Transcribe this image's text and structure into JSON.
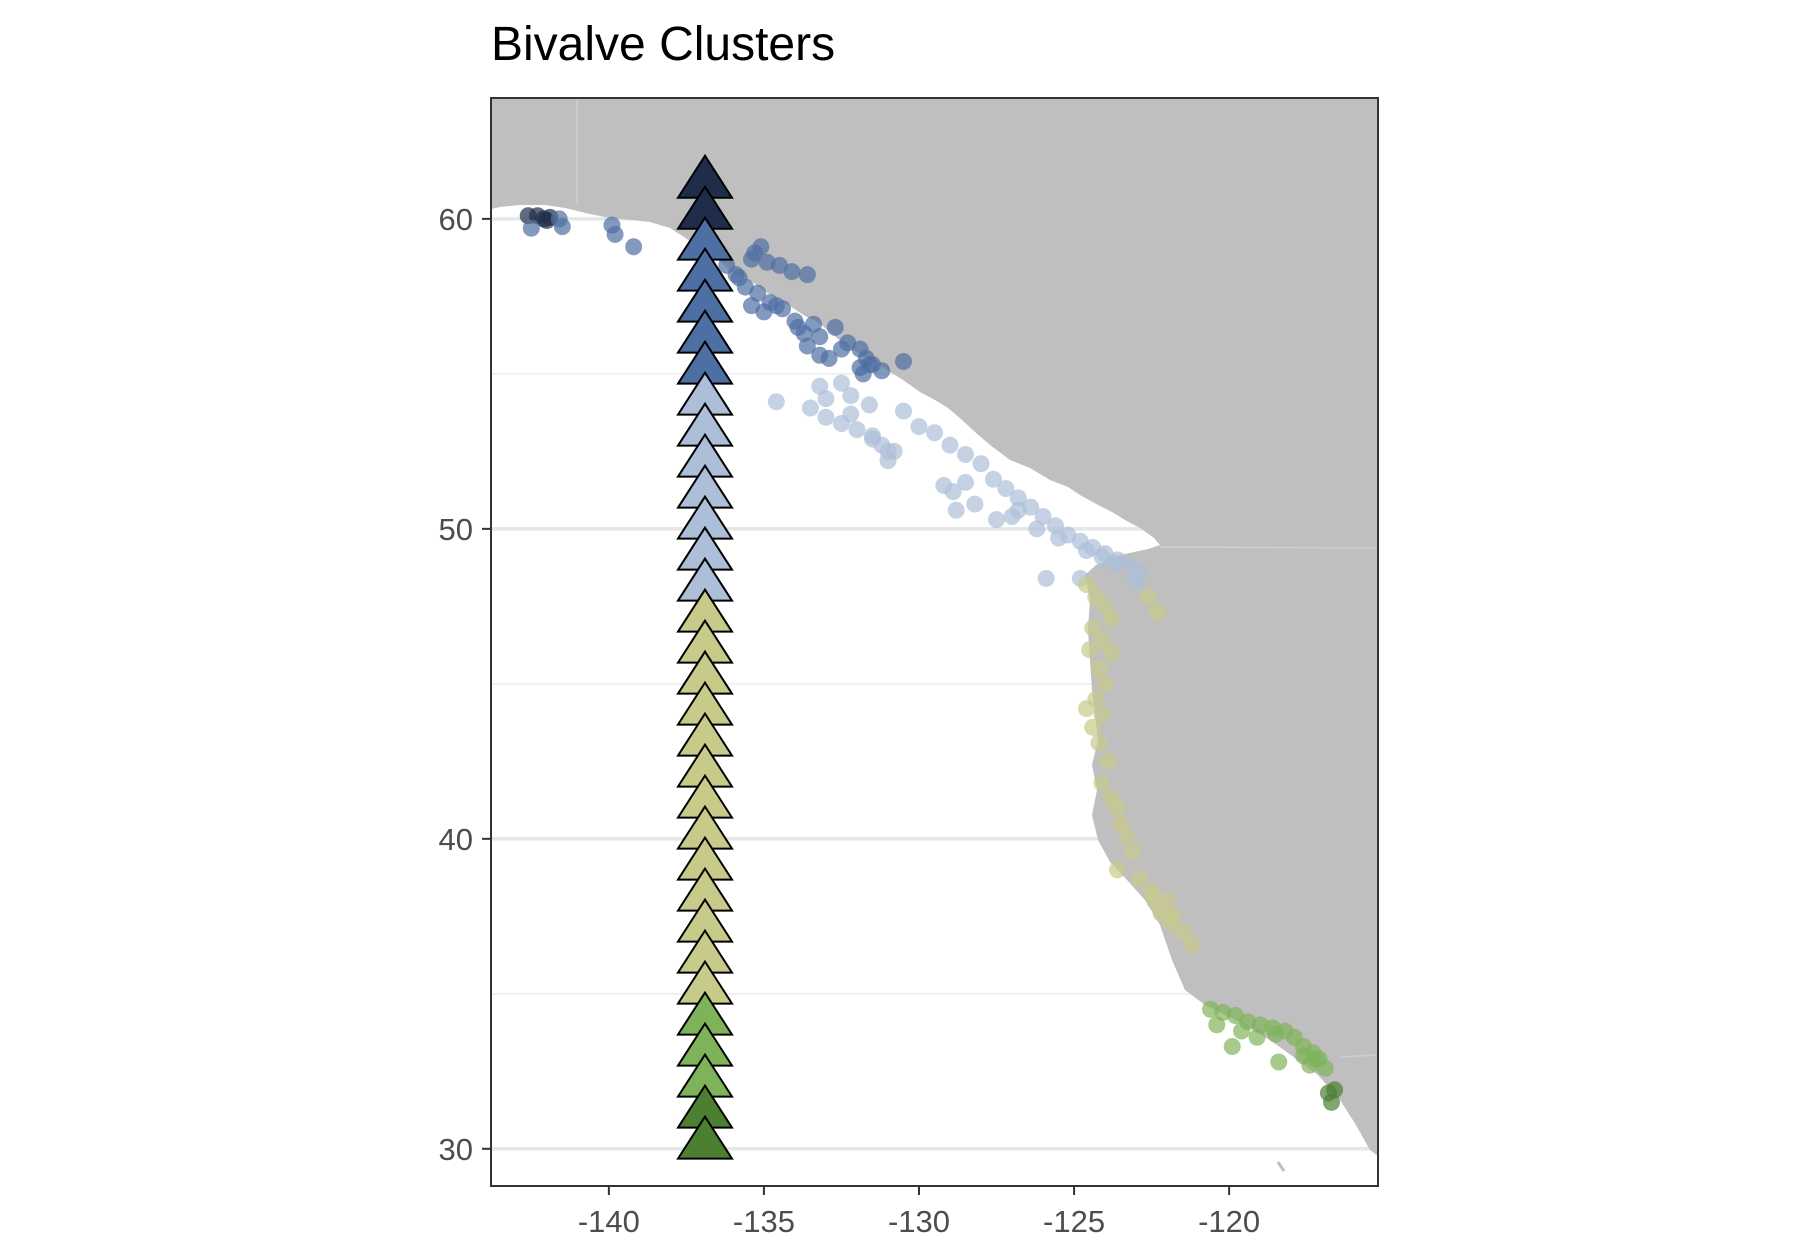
{
  "chart_data": {
    "type": "scatter",
    "title": "Bivalve Clusters",
    "xlabel": "",
    "ylabel": "",
    "xlim": [
      -143.8,
      -115.2
    ],
    "ylim": [
      28.8,
      63.9
    ],
    "x_ticks": [
      -140,
      -135,
      -130,
      -125,
      -120
    ],
    "y_ticks": [
      30,
      40,
      50,
      60
    ],
    "x_tick_labels": [
      "-140",
      "-135",
      "-130",
      "-125",
      "-120"
    ],
    "y_tick_labels": [
      "30",
      "40",
      "50",
      "60"
    ],
    "grid": true,
    "legend": "none",
    "colors": {
      "land": "#bfbfbf",
      "panel_border": "#333333",
      "grid_major": "#e6e6e6",
      "grid_minor": "#f0f0f0",
      "cluster_1": "#1f2d4a",
      "cluster_2": "#4e6fa3",
      "cluster_3": "#adbfd8",
      "cluster_4": "#c8ca8a",
      "cluster_5": "#7fb35a",
      "cluster_6": "#4d7f33"
    },
    "triangle_column": {
      "lon": -136.9,
      "lat": [
        61.2,
        60.2,
        59.2,
        58.2,
        57.2,
        56.2,
        55.2,
        54.2,
        53.2,
        52.2,
        51.2,
        50.2,
        49.2,
        48.2,
        47.2,
        46.2,
        45.2,
        44.2,
        43.2,
        42.2,
        41.2,
        40.2,
        39.2,
        38.2,
        37.2,
        36.2,
        35.2,
        34.2,
        33.2,
        32.2,
        31.2,
        30.2
      ],
      "color": [
        "#1f2d4a",
        "#1f2d4a",
        "#4e6fa3",
        "#4e6fa3",
        "#4e6fa3",
        "#4e6fa3",
        "#4e6fa3",
        "#adbfd8",
        "#adbfd8",
        "#adbfd8",
        "#adbfd8",
        "#adbfd8",
        "#adbfd8",
        "#adbfd8",
        "#c8ca8a",
        "#c8ca8a",
        "#c8ca8a",
        "#c8ca8a",
        "#c8ca8a",
        "#c8ca8a",
        "#c8ca8a",
        "#c8ca8a",
        "#c8ca8a",
        "#c8ca8a",
        "#c8ca8a",
        "#c8ca8a",
        "#c8ca8a",
        "#7fb35a",
        "#7fb35a",
        "#7fb35a",
        "#4d7f33",
        "#4d7f33"
      ]
    },
    "series": [
      {
        "color": "#1f2d4a",
        "x": [
          -142.6,
          -142.1,
          -141.9,
          -142.3,
          -142.0
        ],
        "y": [
          60.1,
          60.0,
          60.05,
          60.1,
          59.95
        ]
      },
      {
        "color": "#4e6fa3",
        "x": [
          -142.5,
          -141.6,
          -141.5,
          -139.9,
          -139.8,
          -139.2,
          -136.2,
          -135.9,
          -135.4,
          -135.1,
          -135.3,
          -134.9,
          -134.5,
          -134.1,
          -133.6,
          -135.6,
          -135.2,
          -134.8,
          -134.4,
          -134.0,
          -135.4,
          -135.0,
          -134.6,
          -133.4,
          -133.2,
          -132.7,
          -132.3,
          -131.9,
          -131.7,
          -131.5,
          -133.6,
          -133.2,
          -132.9,
          -132.5,
          -131.9,
          -131.6,
          -131.2,
          -131.8,
          -130.5,
          -135.8,
          -133.9,
          -133.7
        ],
        "y": [
          59.7,
          60.0,
          59.75,
          59.8,
          59.5,
          59.1,
          58.5,
          58.2,
          58.7,
          59.1,
          58.9,
          58.6,
          58.5,
          58.3,
          58.2,
          57.8,
          57.6,
          57.3,
          57.1,
          56.7,
          57.2,
          57.0,
          57.2,
          56.6,
          56.2,
          56.5,
          56.0,
          55.8,
          55.5,
          55.3,
          55.9,
          55.6,
          55.5,
          55.8,
          55.2,
          55.3,
          55.1,
          55.0,
          55.4,
          58.1,
          56.5,
          56.3
        ]
      },
      {
        "color": "#adbfd8",
        "x": [
          -133.2,
          -134.6,
          -133.5,
          -133.0,
          -132.5,
          -132.0,
          -131.5,
          -131.2,
          -130.8,
          -131.0,
          -132.2,
          -131.6,
          -133.0,
          -132.2,
          -131.5,
          -131.0,
          -130.5,
          -130.0,
          -129.5,
          -129.0,
          -128.5,
          -128.0,
          -127.6,
          -127.2,
          -126.8,
          -126.4,
          -126.0,
          -125.6,
          -125.2,
          -124.8,
          -124.4,
          -124.0,
          -123.6,
          -123.2,
          -122.9,
          -128.5,
          -128.9,
          -128.2,
          -127.0,
          -126.2,
          -125.5,
          -124.6,
          -124.1,
          -123.7,
          -128.8,
          -127.5,
          -126.8,
          -129.2,
          -125.9,
          -124.8,
          -123.0,
          -132.5
        ],
        "y": [
          54.6,
          54.1,
          53.9,
          53.6,
          53.4,
          53.2,
          53.0,
          52.7,
          52.5,
          52.2,
          54.3,
          54.0,
          54.2,
          53.7,
          52.9,
          52.5,
          53.8,
          53.3,
          53.1,
          52.7,
          52.4,
          52.1,
          51.6,
          51.3,
          51.0,
          50.7,
          50.4,
          50.1,
          49.8,
          49.6,
          49.4,
          49.2,
          49.0,
          48.8,
          48.6,
          51.5,
          51.2,
          50.8,
          50.4,
          50.0,
          49.7,
          49.3,
          49.1,
          48.9,
          50.6,
          50.3,
          50.6,
          51.4,
          48.4,
          48.4,
          48.3,
          54.7
        ]
      },
      {
        "color": "#c8ca8a",
        "x": [
          -124.6,
          -124.3,
          -124.0,
          -123.8,
          -124.4,
          -124.1,
          -123.8,
          -124.5,
          -124.2,
          -124.0,
          -124.3,
          -124.1,
          -124.4,
          -124.2,
          -123.9,
          -124.1,
          -123.8,
          -123.6,
          -123.5,
          -123.3,
          -123.1,
          -123.6,
          -122.9,
          -122.5,
          -122.0,
          -121.8,
          -121.5,
          -121.2,
          -122.4,
          -122.2,
          -121.9,
          -124.6,
          -122.6,
          -122.3
        ],
        "y": [
          48.2,
          47.8,
          47.5,
          47.1,
          46.8,
          46.4,
          46.0,
          46.1,
          45.5,
          45.0,
          44.5,
          44.0,
          43.6,
          43.1,
          42.5,
          41.8,
          41.3,
          41.0,
          40.5,
          40.1,
          39.6,
          39.0,
          38.7,
          38.3,
          38.0,
          37.5,
          37.0,
          36.6,
          38.0,
          37.6,
          37.3,
          44.2,
          47.8,
          47.3
        ]
      },
      {
        "color": "#7fb35a",
        "x": [
          -120.6,
          -120.2,
          -119.8,
          -119.4,
          -119.0,
          -118.6,
          -118.2,
          -117.9,
          -117.6,
          -117.3,
          -117.1,
          -116.9,
          -120.4,
          -119.6,
          -119.1,
          -118.5,
          -117.6,
          -117.4,
          -117.2,
          -119.9,
          -118.4
        ],
        "y": [
          34.5,
          34.4,
          34.3,
          34.1,
          34.0,
          33.9,
          33.8,
          33.6,
          33.3,
          33.1,
          32.9,
          32.6,
          34.0,
          33.8,
          33.6,
          33.7,
          33.0,
          32.7,
          32.9,
          33.3,
          32.8
        ]
      },
      {
        "color": "#4d7f33",
        "x": [
          -116.8,
          -116.6,
          -116.7
        ],
        "y": [
          31.8,
          31.9,
          31.5
        ]
      }
    ]
  }
}
